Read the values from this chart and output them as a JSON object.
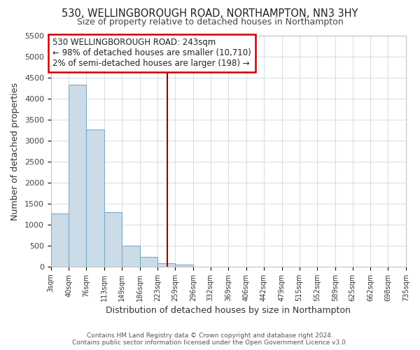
{
  "title": "530, WELLINGBOROUGH ROAD, NORTHAMPTON, NN3 3HY",
  "subtitle": "Size of property relative to detached houses in Northampton",
  "xlabel": "Distribution of detached houses by size in Northampton",
  "ylabel": "Number of detached properties",
  "footer_lines": [
    "Contains HM Land Registry data © Crown copyright and database right 2024.",
    "Contains public sector information licensed under the Open Government Licence v3.0."
  ],
  "bin_edges": [
    3,
    40,
    76,
    113,
    149,
    186,
    223,
    259,
    296,
    332,
    369,
    406,
    442,
    479,
    515,
    552,
    589,
    625,
    662,
    698,
    735
  ],
  "bin_labels": [
    "3sqm",
    "40sqm",
    "76sqm",
    "113sqm",
    "149sqm",
    "186sqm",
    "223sqm",
    "259sqm",
    "296sqm",
    "332sqm",
    "369sqm",
    "406sqm",
    "442sqm",
    "479sqm",
    "515sqm",
    "552sqm",
    "589sqm",
    "625sqm",
    "662sqm",
    "698sqm",
    "735sqm"
  ],
  "bar_heights": [
    1270,
    4340,
    3270,
    1300,
    490,
    230,
    80,
    50,
    0,
    0,
    0,
    0,
    0,
    0,
    0,
    0,
    0,
    0,
    0,
    0
  ],
  "bar_color": "#ccdbe8",
  "bar_edgecolor": "#7aaec8",
  "ylim": [
    0,
    5500
  ],
  "yticks": [
    0,
    500,
    1000,
    1500,
    2000,
    2500,
    3000,
    3500,
    4000,
    4500,
    5000,
    5500
  ],
  "vline_x": 243,
  "vline_color": "#990000",
  "annotation_title": "530 WELLINGBOROUGH ROAD: 243sqm",
  "annotation_line1": "← 98% of detached houses are smaller (10,710)",
  "annotation_line2": "2% of semi-detached houses are larger (198) →",
  "annotation_box_edgecolor": "#cc0000",
  "background_color": "#ffffff",
  "grid_color": "#ccd8e4"
}
